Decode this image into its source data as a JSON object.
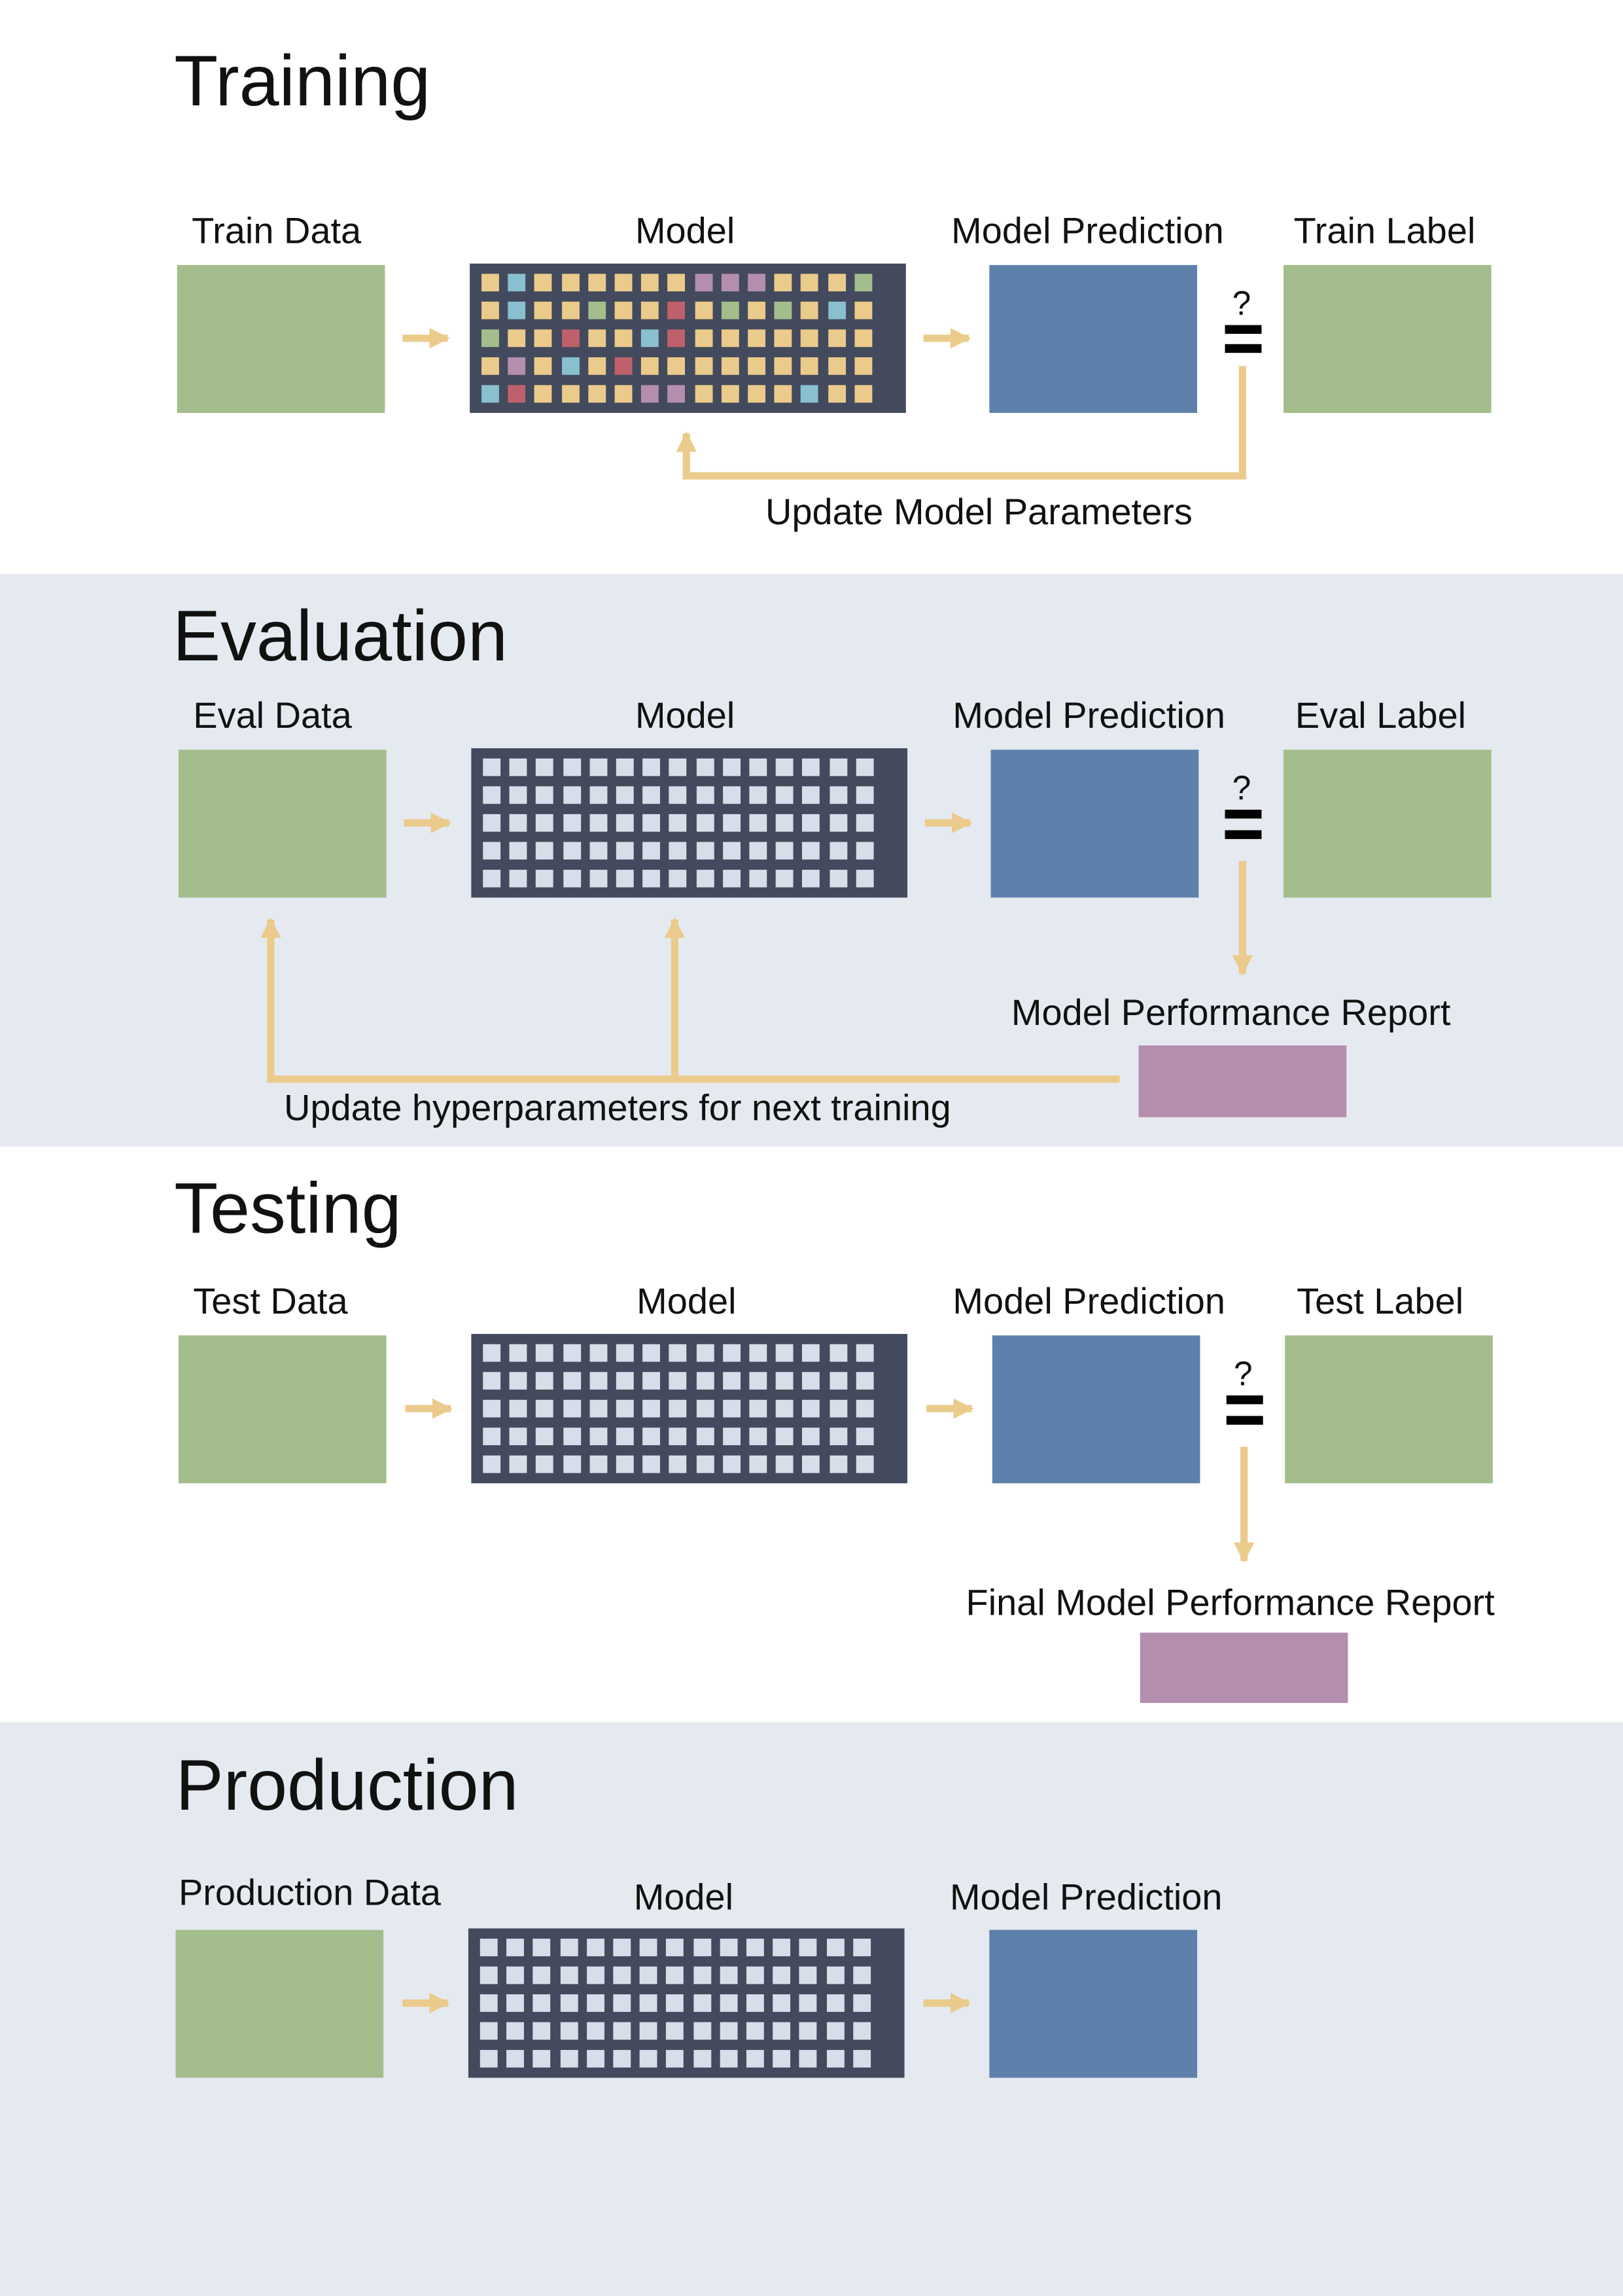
{
  "colors": {
    "data_green": "#a3be8c",
    "prediction_blue": "#5e81ac",
    "model_dark": "#434a5d",
    "report_purple": "#b48ead",
    "arrow_yellow": "#ebcb8b",
    "band_gray": "#e5e9f0",
    "cell_default": "#d8dee9",
    "cell_yellow": "#ebcb8b",
    "cell_cyan": "#88c0d0",
    "cell_green": "#a3be8c",
    "cell_red": "#bf616a",
    "cell_purple": "#b48ead"
  },
  "training": {
    "title": "Training",
    "data_label": "Train Data",
    "model_label": "Model",
    "prediction_label": "Model Prediction",
    "label_label": "Train Label",
    "question": "?",
    "feedback_label": "Update Model Parameters",
    "model_cells": [
      "YCYYYYYYPPPYYYG",
      "YCYYGYYRYGYGYCY",
      "GYYRYYCRYYYYYYY",
      "YPYCYRYYYYYYYYY",
      "CRYYYYPPYYYYCYY"
    ]
  },
  "evaluation": {
    "title": "Evaluation",
    "data_label": "Eval Data",
    "model_label": "Model",
    "prediction_label": "Model Prediction",
    "label_label": "Eval Label",
    "question": "?",
    "report_label": "Model Performance Report",
    "feedback_label": "Update hyperparameters for next training"
  },
  "testing": {
    "title": "Testing",
    "data_label": "Test Data",
    "model_label": "Model",
    "prediction_label": "Model Prediction",
    "label_label": "Test Label",
    "question": "?",
    "report_label": "Final Model Performance Report"
  },
  "production": {
    "title": "Production",
    "data_label": "Production Data",
    "model_label": "Model",
    "prediction_label": "Model Prediction"
  }
}
